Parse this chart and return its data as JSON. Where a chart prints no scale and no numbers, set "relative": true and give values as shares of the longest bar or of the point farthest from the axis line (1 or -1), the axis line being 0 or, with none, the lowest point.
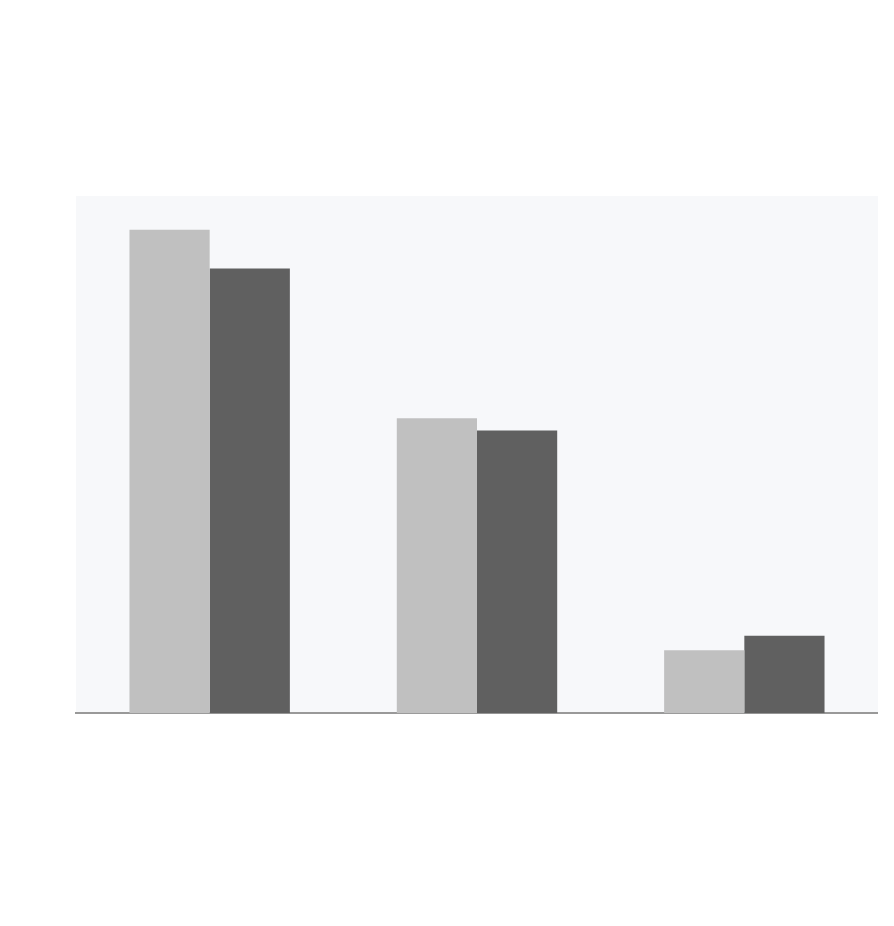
{
  "chart_data": {
    "type": "bar",
    "relative": true,
    "categories": [
      null,
      null,
      null
    ],
    "series": [
      {
        "color": "#c0c0c0",
        "values": [
          1,
          0.61,
          0.13
        ]
      },
      {
        "color": "#606060",
        "values": [
          0.92,
          0.585,
          0.16
        ]
      }
    ],
    "legend": false,
    "grid": false
  }
}
